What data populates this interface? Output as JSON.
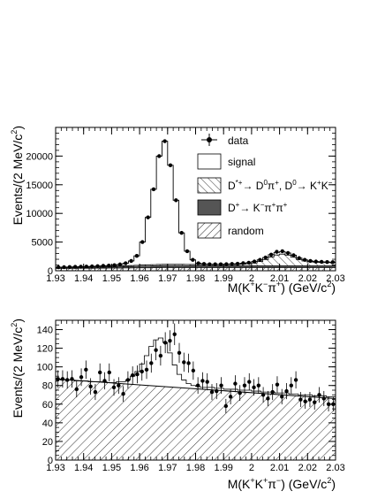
{
  "chart_data": [
    {
      "type": "histogram",
      "ylabel": "Events/(2 MeV/c²)",
      "xlabel_parts": [
        "M(K",
        "+",
        "K",
        "−",
        "π",
        "+",
        ") (GeV/c",
        "2",
        ")"
      ],
      "xlim": [
        1.93,
        2.03
      ],
      "ylim": [
        0,
        25000
      ],
      "xticks": [
        "1.93",
        "1.94",
        "1.95",
        "1.96",
        "1.97",
        "1.98",
        "1.99",
        "2",
        "2.01",
        "2.02",
        "2.03"
      ],
      "yticks": [
        "0",
        "5000",
        "10000",
        "15000",
        "20000"
      ],
      "bin_width": 0.002,
      "legend": {
        "data": "data",
        "signal": "signal",
        "dstar_parts": [
          "D",
          "*+",
          "→ D",
          "0",
          "π",
          "+",
          ", D",
          "0",
          "→ K",
          "+",
          "K",
          "−"
        ],
        "dplus_parts": [
          "D",
          "+",
          "→ K",
          "−",
          "π",
          "+",
          "π",
          "+"
        ],
        "random": "random"
      },
      "series": [
        {
          "name": "data",
          "values": [
            600,
            620,
            650,
            680,
            700,
            720,
            760,
            800,
            850,
            900,
            980,
            1100,
            1300,
            1700,
            2600,
            5000,
            9300,
            14200,
            20000,
            22600,
            18400,
            12300,
            6600,
            3400,
            1900,
            1300,
            1180,
            1130,
            1120,
            1130,
            1150,
            1180,
            1230,
            1320,
            1400,
            1600,
            1900,
            2300,
            2800,
            3300,
            3400,
            3100,
            2700,
            2200,
            1900,
            1700,
            1600,
            1550,
            1520,
            1500
          ]
        },
        {
          "name": "signal",
          "values": [
            600,
            620,
            650,
            680,
            700,
            720,
            760,
            800,
            850,
            900,
            980,
            1100,
            1300,
            1700,
            2600,
            5000,
            9300,
            14200,
            20000,
            22600,
            18400,
            12300,
            6600,
            3400,
            1900,
            1300,
            1180,
            1130,
            1120,
            1130,
            1150,
            1180,
            1230,
            1320,
            1400,
            1600,
            1900,
            2300,
            2800,
            3200,
            3350,
            3100,
            2700,
            2200,
            1900,
            1700,
            1600,
            1550,
            1520,
            1500
          ]
        },
        {
          "name": "dstar",
          "values": [
            600,
            610,
            620,
            630,
            640,
            650,
            670,
            690,
            720,
            750,
            780,
            820,
            860,
            900,
            950,
            990,
            1030,
            1060,
            1090,
            1110,
            1120,
            1120,
            1110,
            1100,
            1090,
            1080,
            1070,
            1060,
            1060,
            1060,
            1070,
            1080,
            1110,
            1150,
            1220,
            1350,
            1600,
            1950,
            2400,
            2750,
            2900,
            2700,
            2350,
            1950,
            1700,
            1550,
            1480,
            1450,
            1440,
            1430
          ]
        },
        {
          "name": "dplus",
          "values": [
            470,
            478,
            486,
            494,
            502,
            510,
            530,
            560,
            590,
            620,
            650,
            680,
            710,
            740,
            770,
            800,
            830,
            860,
            880,
            900,
            910,
            910,
            905,
            900,
            895,
            890,
            885,
            880,
            875,
            870,
            870,
            870,
            870,
            870,
            870,
            870,
            870,
            870,
            870,
            870,
            870,
            870,
            870,
            870,
            870,
            870,
            870,
            870,
            870,
            870
          ]
        },
        {
          "name": "random",
          "values": [
            390,
            394,
            398,
            402,
            406,
            410,
            418,
            426,
            434,
            442,
            450,
            458,
            466,
            474,
            482,
            490,
            498,
            506,
            514,
            522,
            530,
            530,
            530,
            530,
            530,
            530,
            530,
            530,
            530,
            530,
            530,
            530,
            530,
            530,
            530,
            530,
            530,
            530,
            530,
            530,
            530,
            530,
            530,
            530,
            530,
            530,
            530,
            530,
            530,
            530
          ]
        }
      ]
    },
    {
      "type": "histogram",
      "ylabel": "Events/(2 MeV/c²)",
      "xlabel_parts": [
        "M(K",
        "+",
        "K",
        "+",
        "π",
        "−",
        ") (GeV/c",
        "2",
        ")"
      ],
      "xlim": [
        1.93,
        2.03
      ],
      "ylim": [
        0,
        150
      ],
      "xticks": [
        "1.93",
        "1.94",
        "1.95",
        "1.96",
        "1.97",
        "1.98",
        "1.99",
        "2",
        "2.01",
        "2.02",
        "2.03"
      ],
      "yticks": [
        "0",
        "20",
        "40",
        "60",
        "80",
        "100",
        "120",
        "140"
      ],
      "bin_width": 0.002,
      "background_line": [
        [
          1.93,
          87
        ],
        [
          2.03,
          66
        ]
      ],
      "series": [
        {
          "name": "data",
          "values": [
            87,
            87,
            86,
            87,
            76,
            89,
            97,
            79,
            73,
            94,
            85,
            94,
            78,
            80,
            71,
            86,
            91,
            92,
            95,
            97,
            104,
            118,
            112,
            126,
            128,
            135,
            115,
            105,
            104,
            96,
            80,
            85,
            84,
            73,
            74,
            80,
            58,
            68,
            82,
            72,
            80,
            84,
            78,
            80,
            70,
            66,
            73,
            81,
            68,
            74,
            80,
            86,
            65,
            63,
            65,
            62,
            70,
            66,
            60,
            60
          ]
        },
        {
          "name": "fit",
          "values": [
            87,
            86,
            86,
            86,
            85,
            85,
            85,
            84,
            84,
            84,
            84,
            83,
            83,
            84,
            84,
            86,
            90,
            95,
            103,
            112,
            122,
            129,
            131,
            126,
            115,
            102,
            92,
            86,
            82,
            80,
            79,
            78,
            78,
            78,
            77,
            77,
            76,
            76,
            76,
            75,
            75,
            75,
            74,
            74,
            73,
            73,
            73,
            72,
            72,
            72,
            71,
            71,
            70,
            70,
            70,
            69,
            69,
            69,
            68,
            68
          ]
        }
      ]
    }
  ]
}
